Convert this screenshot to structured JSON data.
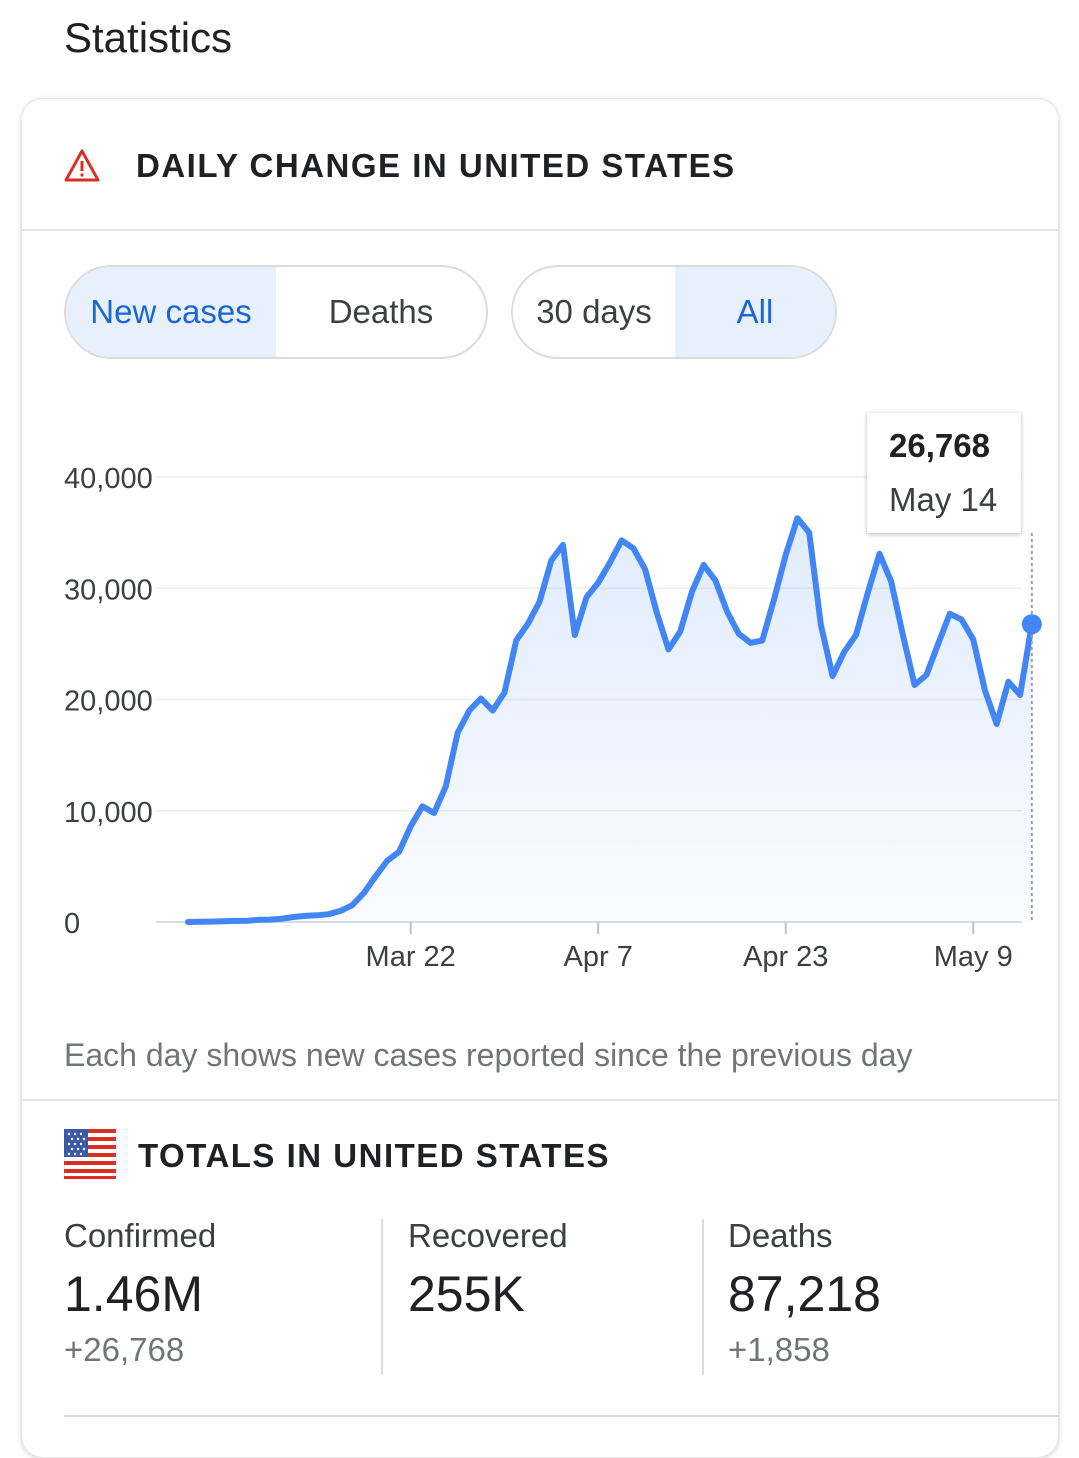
{
  "page_title": "Statistics",
  "daily": {
    "title": "DAILY CHANGE IN UNITED STATES",
    "icon": "warning-triangle-icon",
    "icon_color": "#d93025",
    "metric_tabs": [
      "New cases",
      "Deaths"
    ],
    "metric_selected": "New cases",
    "range_tabs": [
      "30 days",
      "All"
    ],
    "range_selected": "All",
    "note": "Each day shows new cases reported since the previous day"
  },
  "tooltip": {
    "value": "26,768",
    "date": "May 14"
  },
  "chart_data": {
    "type": "area",
    "ylim": [
      0,
      40000
    ],
    "y_ticks": [
      0,
      10000,
      20000,
      30000,
      40000
    ],
    "y_tick_labels": [
      "0",
      "10,000",
      "20,000",
      "30,000",
      "40,000"
    ],
    "x_ticks": [
      {
        "label": "Mar 22",
        "day": 19
      },
      {
        "label": "Apr 7",
        "day": 35
      },
      {
        "label": "Apr 23",
        "day": 51
      },
      {
        "label": "May 9",
        "day": 67
      }
    ],
    "line_color": "#4285f4",
    "grid": true,
    "series": [
      {
        "dates": [
          "Mar 3",
          "Mar 4",
          "Mar 5",
          "Mar 6",
          "Mar 7",
          "Mar 8",
          "Mar 9",
          "Mar 10",
          "Mar 11",
          "Mar 12",
          "Mar 13",
          "Mar 14",
          "Mar 15",
          "Mar 16",
          "Mar 17",
          "Mar 18",
          "Mar 19",
          "Mar 20",
          "Mar 21",
          "Mar 22",
          "Mar 23",
          "Mar 24",
          "Mar 25",
          "Mar 26",
          "Mar 27",
          "Mar 28",
          "Mar 29",
          "Mar 30",
          "Mar 31",
          "Apr 1",
          "Apr 2",
          "Apr 3",
          "Apr 4",
          "Apr 5",
          "Apr 6",
          "Apr 7",
          "Apr 8",
          "Apr 9",
          "Apr 10",
          "Apr 11",
          "Apr 12",
          "Apr 13",
          "Apr 14",
          "Apr 15",
          "Apr 16",
          "Apr 17",
          "Apr 18",
          "Apr 19",
          "Apr 20",
          "Apr 21",
          "Apr 22",
          "Apr 23",
          "Apr 24",
          "Apr 25",
          "Apr 26",
          "Apr 27",
          "Apr 28",
          "Apr 29",
          "Apr 30",
          "May 1",
          "May 2",
          "May 3",
          "May 4",
          "May 5",
          "May 6",
          "May 7",
          "May 8",
          "May 9",
          "May 10",
          "May 11",
          "May 12",
          "May 13",
          "May 14"
        ],
        "values": [
          0,
          20,
          40,
          60,
          100,
          100,
          200,
          220,
          300,
          450,
          550,
          600,
          700,
          1000,
          1500,
          2600,
          4100,
          5500,
          6300,
          8600,
          10400,
          9800,
          12200,
          17000,
          19000,
          20100,
          19000,
          20600,
          25300,
          26800,
          28800,
          32500,
          33900,
          25800,
          29200,
          30500,
          32300,
          34300,
          33600,
          31700,
          27800,
          24500,
          26100,
          29700,
          32100,
          30700,
          27900,
          25900,
          25100,
          25300,
          29000,
          33000,
          36300,
          35000,
          26700,
          22100,
          24300,
          25800,
          29600,
          33100,
          30600,
          25800,
          21300,
          22200,
          25000,
          27700,
          27200,
          25400,
          20800,
          17800,
          21600,
          20400,
          26768
        ]
      }
    ]
  },
  "totals": {
    "title": "TOTALS IN UNITED STATES",
    "flag_icon": "us-flag-icon",
    "stats": [
      {
        "label": "Confirmed",
        "value": "1.46M",
        "change": "+26,768"
      },
      {
        "label": "Recovered",
        "value": "255K",
        "change": ""
      },
      {
        "label": "Deaths",
        "value": "87,218",
        "change": "+1,858"
      }
    ]
  }
}
